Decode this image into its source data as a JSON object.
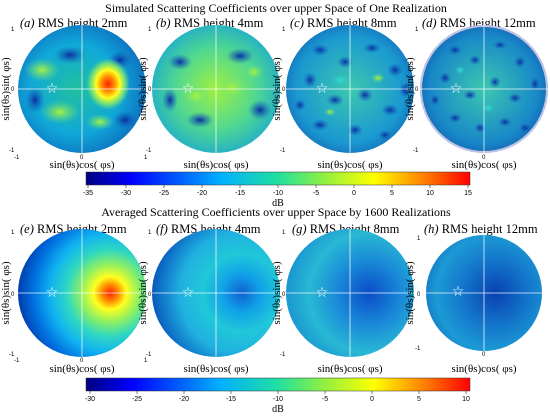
{
  "section_top": {
    "title": "Simulated Scattering Coefficients over upper Space of One Realization",
    "panels": [
      {
        "letter": "(a)",
        "title": "RMS height 2mm"
      },
      {
        "letter": "(b)",
        "title": "RMS height 4mm"
      },
      {
        "letter": "(c)",
        "title": "RMS height 8mm"
      },
      {
        "letter": "(d)",
        "title": "RMS height 12mm"
      }
    ],
    "colorbar": {
      "ticks": [
        "-35",
        "-30",
        "-25",
        "-20",
        "-15",
        "-10",
        "-5",
        "0",
        "5",
        "10",
        "15"
      ],
      "unit": "dB"
    }
  },
  "section_bottom": {
    "title": "Averaged Scattering Coefficients over upper Space by 1600 Realizations",
    "panels": [
      {
        "letter": "(e)",
        "title": "RMS height 2mm"
      },
      {
        "letter": "(f)",
        "title": "RMS height 4mm"
      },
      {
        "letter": "(g)",
        "title": "RMS height 8mm"
      },
      {
        "letter": "(h)",
        "title": "RMS height 12mm"
      }
    ],
    "colorbar": {
      "ticks": [
        "-30",
        "-25",
        "-20",
        "-15",
        "-10",
        "-5",
        "0",
        "5",
        "10"
      ],
      "unit": "dB"
    }
  },
  "axes": {
    "ylabel": "sin(θs)sin( φs)",
    "xlabel": "sin(θs)cos( φs)",
    "y_ticks": [
      "1",
      "0",
      "-1"
    ],
    "x_ticks": [
      "-1",
      "0",
      "1"
    ]
  },
  "marker": {
    "symbol": "☆",
    "label": "incident direction"
  },
  "chart_data": [
    {
      "type": "heatmap",
      "title": "Simulated Scattering Coefficients over upper Space of One Realization",
      "panels": [
        "RMS height 2mm",
        "RMS height 4mm",
        "RMS height 8mm",
        "RMS height 12mm"
      ],
      "xlabel": "sin(θs)cos( φs)",
      "ylabel": "sin(θs)sin( φs)",
      "xlim": [
        -1,
        1
      ],
      "ylim": [
        -1,
        1
      ],
      "colorbar_range_db": [
        -35,
        15
      ]
    },
    {
      "type": "heatmap",
      "title": "Averaged Scattering Coefficients over upper Space by 1600 Realizations",
      "panels": [
        "RMS height 2mm",
        "RMS height 4mm",
        "RMS height 8mm",
        "RMS height 12mm"
      ],
      "xlabel": "sin(θs)cos( φs)",
      "ylabel": "sin(θs)sin( φs)",
      "xlim": [
        -1,
        1
      ],
      "ylim": [
        -1,
        1
      ],
      "colorbar_range_db": [
        -30,
        10
      ]
    }
  ],
  "colors": {
    "jet": [
      "#00007f",
      "#0000ff",
      "#007fff",
      "#00ffff",
      "#7fff7f",
      "#ffff00",
      "#ff7f00",
      "#ff0000",
      "#7f0000"
    ]
  }
}
